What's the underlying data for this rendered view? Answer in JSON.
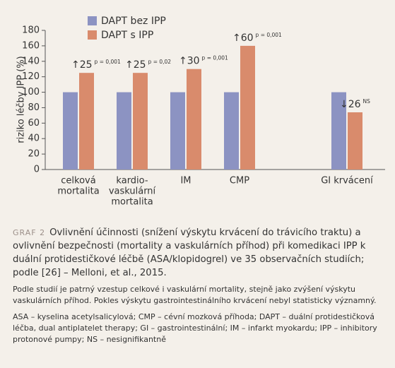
{
  "chart_data": {
    "type": "bar",
    "y_label": "riziko léčby IPP (%)",
    "categories": [
      [
        "celková",
        "mortalita"
      ],
      [
        "kardio-",
        "vaskulární",
        "mortalita"
      ],
      [
        "IM"
      ],
      [
        "CMP"
      ],
      null,
      [
        "GI krvácení"
      ]
    ],
    "series": [
      {
        "name": "DAPT bez IPP",
        "color": "#8c93c2",
        "values": [
          100,
          100,
          100,
          100,
          null,
          100
        ]
      },
      {
        "name": "DAPT s IPP",
        "color": "#d98b6c",
        "values": [
          125,
          125,
          130,
          160,
          null,
          74
        ]
      }
    ],
    "value_annotations": [
      {
        "text": "↑25",
        "note": "p = 0,001"
      },
      {
        "text": "↑25",
        "note": "p = 0,02"
      },
      {
        "text": "↑30",
        "note": "p = 0,001"
      },
      {
        "text": "↑60",
        "note": "p = 0,001"
      },
      null,
      {
        "text": "↓26",
        "note": "NS"
      }
    ],
    "ylim": [
      0,
      180
    ],
    "yticks": [
      0,
      20,
      40,
      60,
      80,
      100,
      120,
      140,
      160,
      180
    ]
  },
  "caption": {
    "label": "GRAF 2",
    "title": "Ovlivnění účinnosti (snížení výskytu krvácení do trávicího traktu) a ovlivnění bezpečnosti (mortality a vaskulárních příhod) při komedikaci IPP k duální protidestičkové léčbě (ASA/klopidogrel) ve 35 observačních studiích; podle [26] – Melloni, et al., 2015.",
    "description": "Podle studií je patrný vzestup celkové i vaskulární mortality, stejně jako zvýšení výskytu vaskulárních příhod. Pokles výskytu gastrointestinálního krvácení nebyl statisticky významný.",
    "abbreviations": "ASA – kyselina acetylsalicylová; CMP – cévní mozková příhoda; DAPT – duální protidestičková léčba, dual antiplatelet therapy; GI – gastrointestinální; IM – infarkt myokardu; IPP – inhibitory protonové pumpy; NS – nesignifikantně"
  }
}
